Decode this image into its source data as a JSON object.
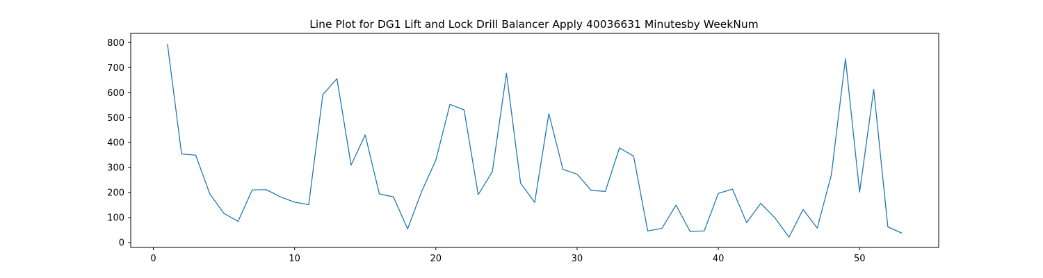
{
  "chart_data": {
    "type": "line",
    "title": "Line Plot for DG1 Lift and Lock Drill Balancer Apply 40036631 Minutesby WeekNum",
    "xlabel": "",
    "ylabel": "",
    "xlim": [
      -1.6,
      55.6
    ],
    "ylim": [
      -19,
      837
    ],
    "xticks": [
      0,
      10,
      20,
      30,
      40,
      50
    ],
    "yticks": [
      0,
      100,
      200,
      300,
      400,
      500,
      600,
      700,
      800
    ],
    "grid": false,
    "legend": "none",
    "line_color": "#1f77b4",
    "series": [
      {
        "x": [
          1,
          2,
          3,
          4,
          5,
          6,
          7,
          8,
          9,
          10,
          11,
          12,
          13,
          14,
          15,
          16,
          17,
          18,
          19,
          20,
          21,
          22,
          23,
          24,
          25,
          26,
          27,
          28,
          29,
          30,
          31,
          32,
          33,
          34,
          35,
          36,
          37,
          38,
          39,
          40,
          41,
          42,
          43,
          44,
          45,
          46,
          47,
          48,
          49,
          50,
          51,
          52,
          53
        ],
        "values": [
          795,
          355,
          350,
          195,
          117,
          85,
          211,
          212,
          183,
          162,
          152,
          592,
          656,
          310,
          431,
          195,
          183,
          55,
          205,
          330,
          553,
          531,
          192,
          284,
          677,
          238,
          161,
          516,
          293,
          274,
          209,
          205,
          379,
          346,
          47,
          57,
          150,
          45,
          47,
          197,
          214,
          80,
          157,
          100,
          22,
          133,
          58,
          271,
          736,
          202,
          613,
          63,
          38
        ]
      }
    ]
  }
}
